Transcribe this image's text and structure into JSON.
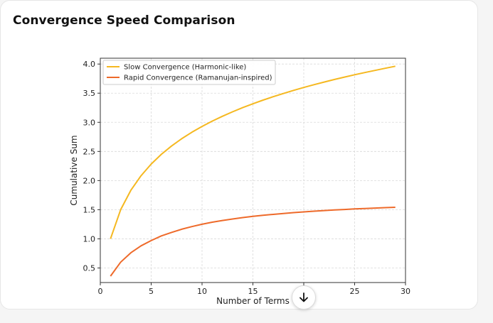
{
  "card": {
    "title": "Convergence Speed Comparison"
  },
  "colors": {
    "slow": "#f5b820",
    "rapid": "#ee6a2a",
    "grid": "#d9d9d9",
    "axis": "#333333"
  },
  "icons": {
    "scroll": "arrow-down-icon"
  },
  "chart_data": {
    "type": "line",
    "title": "",
    "xlabel": "Number of Terms",
    "ylabel": "Cumulative Sum",
    "xlim": [
      0,
      30
    ],
    "ylim": [
      0.25,
      4.1
    ],
    "xticks": [
      0,
      5,
      10,
      15,
      20,
      25,
      30
    ],
    "yticks": [
      0.5,
      1.0,
      1.5,
      2.0,
      2.5,
      3.0,
      3.5,
      4.0
    ],
    "xtick_labels": [
      "0",
      "5",
      "10",
      "15",
      "20",
      "25",
      "30"
    ],
    "ytick_labels": [
      "0.5",
      "1.0",
      "1.5",
      "2.0",
      "2.5",
      "3.0",
      "3.5",
      "4.0"
    ],
    "grid": true,
    "legend_position": "top-left",
    "x": [
      1,
      2,
      3,
      4,
      5,
      6,
      7,
      8,
      9,
      10,
      11,
      12,
      13,
      14,
      15,
      16,
      17,
      18,
      19,
      20,
      21,
      22,
      23,
      24,
      25,
      26,
      27,
      28,
      29
    ],
    "series": [
      {
        "name": "Slow Convergence (Harmonic-like)",
        "color": "#f5b820",
        "values": [
          1.0,
          1.5,
          1.833,
          2.083,
          2.283,
          2.45,
          2.593,
          2.718,
          2.829,
          2.929,
          3.02,
          3.103,
          3.18,
          3.252,
          3.318,
          3.381,
          3.44,
          3.495,
          3.548,
          3.598,
          3.645,
          3.691,
          3.734,
          3.776,
          3.816,
          3.854,
          3.891,
          3.927,
          3.962
        ]
      },
      {
        "name": "Rapid Convergence (Ramanujan-inspired)",
        "color": "#ee6a2a",
        "values": [
          0.36,
          0.6,
          0.76,
          0.88,
          0.97,
          1.05,
          1.11,
          1.165,
          1.21,
          1.25,
          1.285,
          1.315,
          1.34,
          1.365,
          1.385,
          1.405,
          1.42,
          1.435,
          1.45,
          1.462,
          1.474,
          1.485,
          1.495,
          1.504,
          1.513,
          1.521,
          1.528,
          1.535,
          1.541
        ]
      }
    ]
  }
}
